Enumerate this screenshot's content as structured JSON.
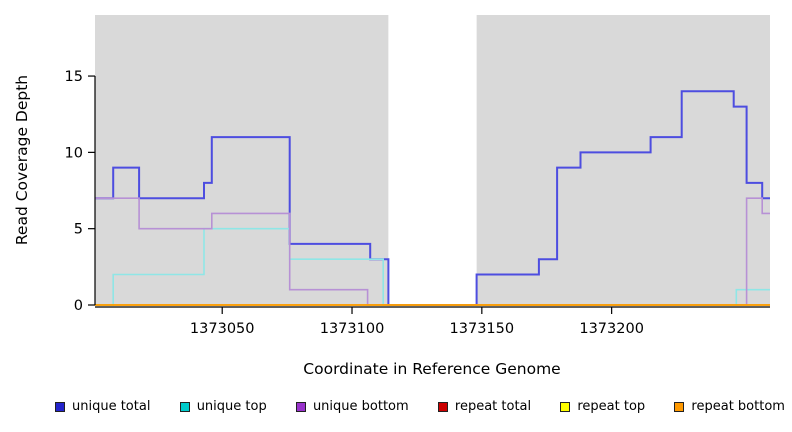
{
  "figure": {
    "background": "#ffffff",
    "shaded_band_color": "#d9d9d9"
  },
  "chart_data": {
    "type": "line",
    "line_style": "step",
    "title": "",
    "xlabel": "Coordinate in Reference Genome",
    "ylabel": "Read Coverage Depth",
    "xlim": [
      1373001,
      1373261
    ],
    "ylim": [
      0,
      19
    ],
    "xticks": [
      1373050,
      1373100,
      1373150,
      1373200
    ],
    "yticks": [
      0,
      5,
      10,
      15
    ],
    "grid": false,
    "legend_position": "bottom",
    "shaded_regions": [
      {
        "from": 1373001,
        "to": 1373114,
        "color": "#d9d9d9"
      },
      {
        "from": 1373148,
        "to": 1373261,
        "color": "#d9d9d9"
      }
    ],
    "series": [
      {
        "name": "unique total",
        "color": "#2424cc",
        "line_color": "#4d4de0",
        "step_points": [
          [
            1373001,
            7
          ],
          [
            1373008,
            9
          ],
          [
            1373018,
            7
          ],
          [
            1373043,
            8
          ],
          [
            1373046,
            11
          ],
          [
            1373076,
            4
          ],
          [
            1373107,
            3
          ],
          [
            1373114,
            0
          ],
          [
            1373148,
            2
          ],
          [
            1373172,
            3
          ],
          [
            1373179,
            9
          ],
          [
            1373188,
            10
          ],
          [
            1373215,
            11
          ],
          [
            1373227,
            14
          ],
          [
            1373247,
            13
          ],
          [
            1373252,
            8
          ],
          [
            1373258,
            7
          ]
        ]
      },
      {
        "name": "unique top",
        "color": "#00cccc",
        "line_color": "#8fe6e6",
        "step_points": [
          [
            1373001,
            0
          ],
          [
            1373008,
            2
          ],
          [
            1373043,
            5
          ],
          [
            1373076,
            3
          ],
          [
            1373112,
            0
          ],
          [
            1373248,
            1
          ]
        ]
      },
      {
        "name": "unique bottom",
        "color": "#9933cc",
        "line_color": "#b791d5",
        "step_points": [
          [
            1373001,
            7
          ],
          [
            1373018,
            5
          ],
          [
            1373046,
            6
          ],
          [
            1373076,
            1
          ],
          [
            1373106,
            0
          ],
          [
            1373252,
            7
          ],
          [
            1373258,
            6
          ]
        ]
      },
      {
        "name": "repeat total",
        "color": "#cc0000",
        "line_color": "#cc0000",
        "step_points": [
          [
            1373001,
            0
          ]
        ]
      },
      {
        "name": "repeat top",
        "color": "#ffff00",
        "line_color": "#ffff00",
        "step_points": [
          [
            1373001,
            0
          ]
        ]
      },
      {
        "name": "repeat bottom",
        "color": "#ff9900",
        "line_color": "#ff9900",
        "step_points": [
          [
            1373001,
            0
          ]
        ]
      }
    ]
  }
}
